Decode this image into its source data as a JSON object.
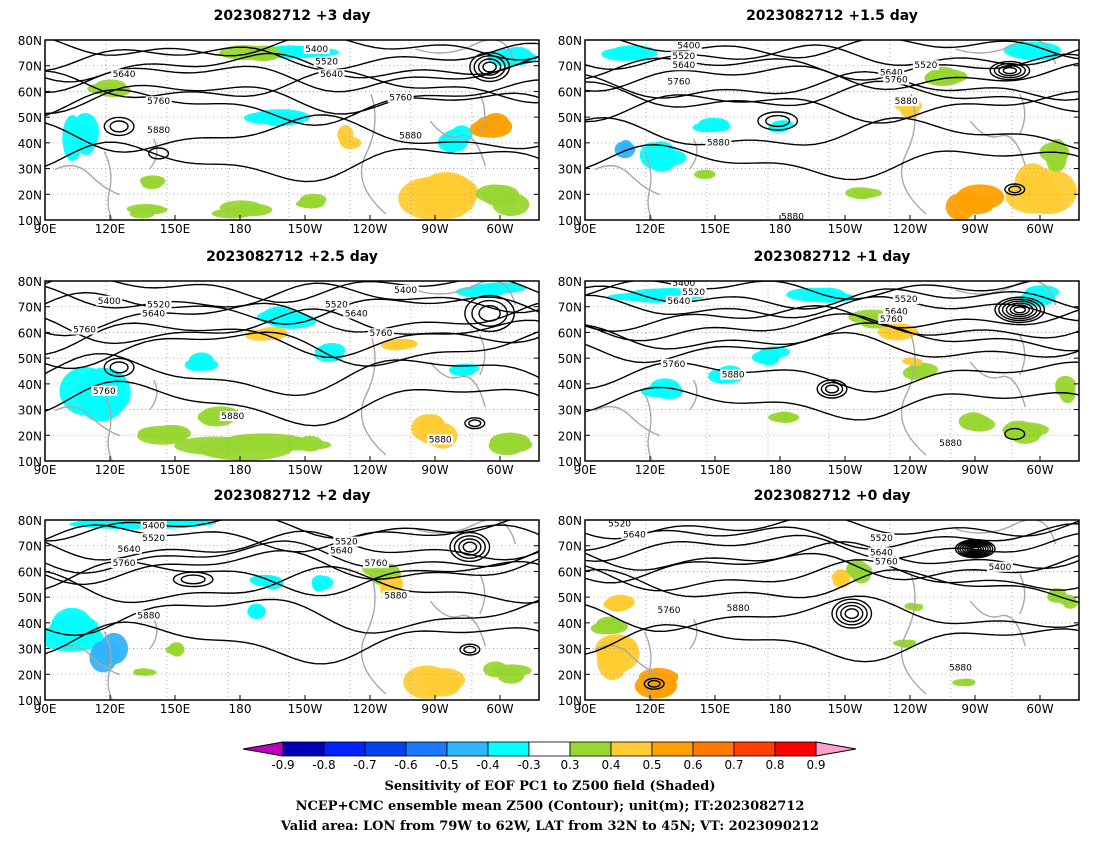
{
  "panels": [
    {
      "title": "2023082712 +3 day",
      "contour_labels": [
        "5400",
        "5520",
        "5640",
        "5640",
        "5760",
        "5760",
        "5880",
        "5880"
      ]
    },
    {
      "title": "2023082712 +1.5 day",
      "contour_labels": [
        "5400",
        "5520",
        "5640",
        "5640",
        "5520",
        "5760",
        "5760",
        "5880",
        "5880",
        "5880"
      ]
    },
    {
      "title": "2023082712 +2.5 day",
      "contour_labels": [
        "5400",
        "5520",
        "5640",
        "5520",
        "5640",
        "5400",
        "5760",
        "5760",
        "5760",
        "5880",
        "5880"
      ]
    },
    {
      "title": "2023082712 +1 day",
      "contour_labels": [
        "5400",
        "5520",
        "5640",
        "5520",
        "5640",
        "5760",
        "5760",
        "5880",
        "5880"
      ]
    },
    {
      "title": "2023082712 +2 day",
      "contour_labels": [
        "5400",
        "5520",
        "5640",
        "5520",
        "5640",
        "5760",
        "5760",
        "5880",
        "5880"
      ]
    },
    {
      "title": "2023082712 +0 day",
      "contour_labels": [
        "5520",
        "5640",
        "5520",
        "5640",
        "5760",
        "5400",
        "5760",
        "5880",
        "5880"
      ]
    }
  ],
  "lat_labels": [
    "80N",
    "70N",
    "60N",
    "50N",
    "40N",
    "30N",
    "20N",
    "10N"
  ],
  "lon_labels": [
    "90E",
    "120E",
    "150E",
    "180",
    "150W",
    "120W",
    "90W",
    "60W"
  ],
  "colorbar": {
    "labels": [
      "-0.9",
      "-0.8",
      "-0.7",
      "-0.6",
      "-0.5",
      "-0.4",
      "-0.3",
      "0.3",
      "0.4",
      "0.5",
      "0.6",
      "0.7",
      "0.8",
      "0.9"
    ],
    "colors": [
      "#c000c0",
      "#0000b4",
      "#0022ff",
      "#0044ee",
      "#1e78ff",
      "#32b4ff",
      "#00ffff",
      "#ffffff",
      "#98d632",
      "#ffcc33",
      "#ffa000",
      "#ff7800",
      "#ff4000",
      "#ff0000",
      "#ffa0cc"
    ]
  },
  "caption": {
    "line1": "Sensitivity of EOF PC1 to Z500 field (Shaded)",
    "line2": "NCEP+CMC ensemble mean Z500 (Contour); unit(m); IT:2023082712",
    "line3": "Valid area: LON from 79W to 62W, LAT from 32N to 45N; VT: 2023090212"
  }
}
